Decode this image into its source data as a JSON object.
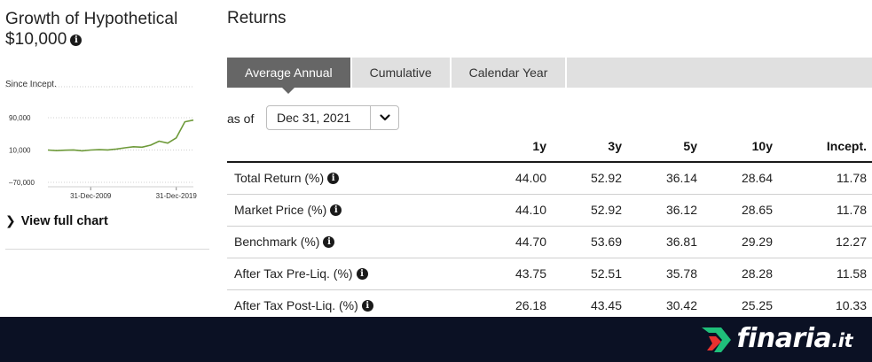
{
  "left_panel": {
    "title_line1": "Growth of Hypothetical",
    "title_line2": "$10,000",
    "since_label": "Since Incept.",
    "chart_link": "View full chart",
    "chart_data": {
      "type": "line",
      "y_ticks": [
        "90,000",
        "10,000",
        "–70,000"
      ],
      "x_ticks": [
        "31-Dec-2009",
        "31-Dec-2019"
      ],
      "ylim": [
        -70000,
        90000
      ],
      "series": [
        {
          "color": "#6e9a3a",
          "x": [
            2004,
            2005,
            2006,
            2007,
            2008,
            2009,
            2010,
            2011,
            2012,
            2013,
            2014,
            2015,
            2016,
            2017,
            2018,
            2019,
            2020,
            2021
          ],
          "y": [
            10000,
            8500,
            9500,
            10200,
            8000,
            10000,
            10800,
            10300,
            12500,
            15500,
            18000,
            17000,
            22000,
            32000,
            27000,
            40000,
            80000,
            84000
          ]
        }
      ]
    }
  },
  "returns": {
    "title": "Returns",
    "tabs": [
      "Average Annual",
      "Cumulative",
      "Calendar Year"
    ],
    "active_tab": "Average Annual",
    "as_of_label": "as of",
    "as_of_value": "Dec 31, 2021",
    "columns": [
      "",
      "1y",
      "3y",
      "5y",
      "10y",
      "Incept."
    ],
    "rows": [
      {
        "label": "Total Return (%)",
        "values": [
          "44.00",
          "52.92",
          "36.14",
          "28.64",
          "11.78"
        ]
      },
      {
        "label": "Market Price (%)",
        "values": [
          "44.10",
          "52.92",
          "36.12",
          "28.65",
          "11.78"
        ]
      },
      {
        "label": "Benchmark (%)",
        "values": [
          "44.70",
          "53.69",
          "36.81",
          "29.29",
          "12.27"
        ]
      },
      {
        "label": "After Tax Pre-Liq. (%)",
        "values": [
          "43.75",
          "52.51",
          "35.78",
          "28.28",
          "11.58"
        ]
      },
      {
        "label": "After Tax Post-Liq. (%)",
        "values": [
          "26.18",
          "43.45",
          "30.42",
          "25.25",
          "10.33"
        ]
      }
    ]
  },
  "footer": {
    "brand_name": "finaria",
    "brand_tld": ".it",
    "colors": {
      "background": "#0b1124",
      "logo_green": "#1fbf7a",
      "logo_red": "#e8312f"
    }
  },
  "icons": {
    "info": "info-icon",
    "chevron_right": "chevron-right-icon",
    "chevron_down": "chevron-down-icon"
  }
}
